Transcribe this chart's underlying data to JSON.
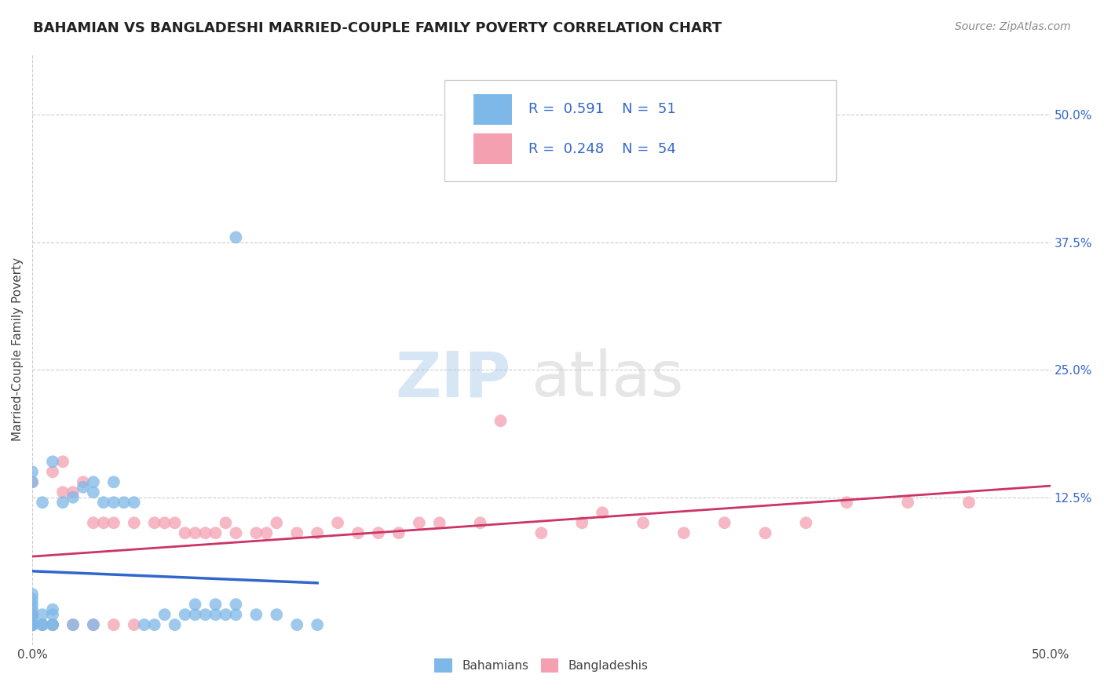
{
  "title": "BAHAMIAN VS BANGLADESHI MARRIED-COUPLE FAMILY POVERTY CORRELATION CHART",
  "source": "Source: ZipAtlas.com",
  "ylabel": "Married-Couple Family Poverty",
  "xlim": [
    0,
    0.5
  ],
  "ylim": [
    -0.02,
    0.56
  ],
  "yticks_right": [
    0.125,
    0.25,
    0.375,
    0.5
  ],
  "ytick_right_labels": [
    "12.5%",
    "25.0%",
    "37.5%",
    "50.0%"
  ],
  "grid_color": "#cccccc",
  "background_color": "#ffffff",
  "bahamian_color": "#7EB8E8",
  "bangladeshi_color": "#F4A0B0",
  "bahamian_line_color": "#3366CC",
  "bangladeshi_line_color": "#CC3366",
  "bahamian_R": 0.591,
  "bahamian_N": 51,
  "bangladeshi_R": 0.248,
  "bangladeshi_N": 54,
  "watermark_zip": "ZIP",
  "watermark_atlas": "atlas",
  "legend_label_1": "Bahamians",
  "legend_label_2": "Bangladeshis",
  "bahamian_x": [
    0.0,
    0.0,
    0.0,
    0.0,
    0.0,
    0.0,
    0.0,
    0.0,
    0.0,
    0.0,
    0.0,
    0.0,
    0.005,
    0.005,
    0.005,
    0.005,
    0.01,
    0.01,
    0.01,
    0.01,
    0.01,
    0.015,
    0.02,
    0.02,
    0.025,
    0.03,
    0.03,
    0.03,
    0.035,
    0.04,
    0.04,
    0.045,
    0.05,
    0.055,
    0.06,
    0.065,
    0.07,
    0.075,
    0.08,
    0.08,
    0.085,
    0.09,
    0.09,
    0.095,
    0.1,
    0.1,
    0.1,
    0.11,
    0.12,
    0.13,
    0.14
  ],
  "bahamian_y": [
    0.0,
    0.0,
    0.0,
    0.0,
    0.005,
    0.01,
    0.015,
    0.02,
    0.025,
    0.03,
    0.14,
    0.15,
    0.0,
    0.0,
    0.01,
    0.12,
    0.0,
    0.0,
    0.01,
    0.015,
    0.16,
    0.12,
    0.0,
    0.125,
    0.135,
    0.0,
    0.13,
    0.14,
    0.12,
    0.12,
    0.14,
    0.12,
    0.12,
    0.0,
    0.0,
    0.01,
    0.0,
    0.01,
    0.01,
    0.02,
    0.01,
    0.01,
    0.02,
    0.01,
    0.01,
    0.02,
    0.38,
    0.01,
    0.01,
    0.0,
    0.0
  ],
  "bangladeshi_x": [
    0.0,
    0.0,
    0.0,
    0.0,
    0.0,
    0.0,
    0.005,
    0.01,
    0.01,
    0.015,
    0.015,
    0.02,
    0.02,
    0.025,
    0.03,
    0.03,
    0.035,
    0.04,
    0.04,
    0.05,
    0.05,
    0.06,
    0.065,
    0.07,
    0.075,
    0.08,
    0.085,
    0.09,
    0.095,
    0.1,
    0.11,
    0.115,
    0.12,
    0.13,
    0.14,
    0.15,
    0.16,
    0.17,
    0.18,
    0.19,
    0.2,
    0.22,
    0.23,
    0.25,
    0.27,
    0.28,
    0.3,
    0.32,
    0.34,
    0.36,
    0.38,
    0.4,
    0.43,
    0.46
  ],
  "bangladeshi_y": [
    0.0,
    0.0,
    0.0,
    0.01,
    0.01,
    0.14,
    0.0,
    0.0,
    0.15,
    0.13,
    0.16,
    0.0,
    0.13,
    0.14,
    0.0,
    0.1,
    0.1,
    0.0,
    0.1,
    0.0,
    0.1,
    0.1,
    0.1,
    0.1,
    0.09,
    0.09,
    0.09,
    0.09,
    0.1,
    0.09,
    0.09,
    0.09,
    0.1,
    0.09,
    0.09,
    0.1,
    0.09,
    0.09,
    0.09,
    0.1,
    0.1,
    0.1,
    0.2,
    0.09,
    0.1,
    0.11,
    0.1,
    0.09,
    0.1,
    0.09,
    0.1,
    0.12,
    0.12,
    0.12
  ]
}
